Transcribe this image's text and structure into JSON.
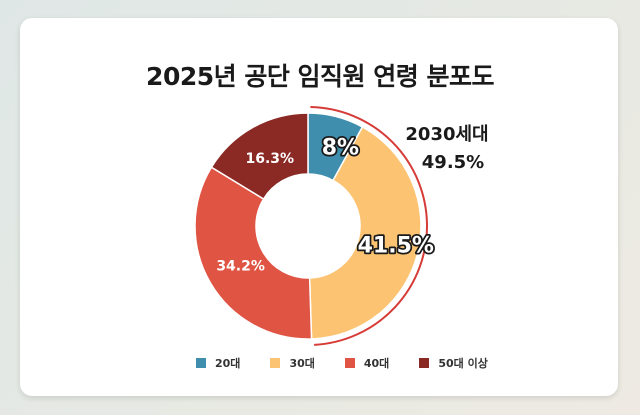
{
  "title": "2025년 공단 임직원 연령 분포도",
  "chart_data": {
    "type": "pie",
    "donut": true,
    "title": "2025년 공단 임직원 연령 분포도",
    "slices": [
      {
        "name": "20대",
        "value": 8,
        "label": "8%",
        "color": "#3f8ead"
      },
      {
        "name": "30대",
        "value": 41.5,
        "label": "41.5%",
        "color": "#fcc472"
      },
      {
        "name": "40대",
        "value": 34.2,
        "label": "34.2%",
        "color": "#e05444"
      },
      {
        "name": "50대 이상",
        "value": 16.3,
        "label": "16.3%",
        "color": "#8b2a25"
      }
    ],
    "annotation": {
      "label": "2030세대",
      "value": "49.5%",
      "color": "#d63b37"
    },
    "legend_position": "bottom"
  },
  "legend": {
    "items": [
      {
        "label": "20대",
        "color": "#3f8ead"
      },
      {
        "label": "30대",
        "color": "#fcc472"
      },
      {
        "label": "40대",
        "color": "#e05444"
      },
      {
        "label": "50대 이상",
        "color": "#8b2a25"
      }
    ]
  }
}
